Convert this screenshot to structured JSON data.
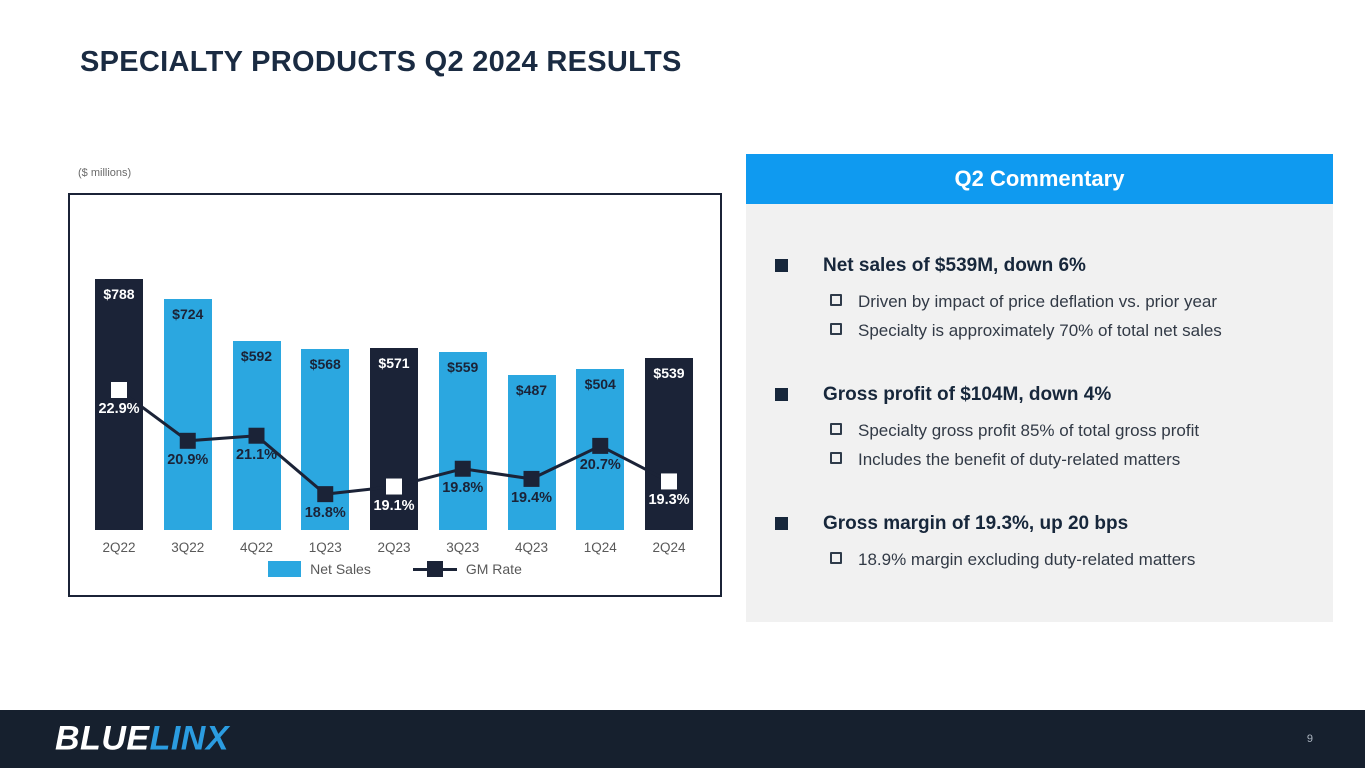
{
  "slide": {
    "title": "SPECIALTY PRODUCTS Q2 2024 RESULTS"
  },
  "chart": {
    "units_label": "($ millions)",
    "legend": [
      {
        "label": "Net Sales",
        "swatch": "bar"
      },
      {
        "label": "GM Rate",
        "swatch": "line"
      }
    ],
    "colors": {
      "bar_blue": "#2ba7e0",
      "bar_dark": "#1b2337",
      "line": "#1b2337",
      "marker_on_dark": "#ffffff"
    }
  },
  "chart_data": {
    "type": "bar+line",
    "title": "",
    "xlabel": "",
    "ylabel": "($ millions)",
    "categories": [
      "2Q22",
      "3Q22",
      "4Q22",
      "1Q23",
      "2Q23",
      "3Q23",
      "4Q23",
      "1Q24",
      "2Q24"
    ],
    "highlighted": [
      true,
      false,
      false,
      false,
      true,
      false,
      false,
      false,
      true
    ],
    "series": [
      {
        "name": "Net Sales",
        "type": "bar",
        "values": [
          788,
          724,
          592,
          568,
          571,
          559,
          487,
          504,
          539
        ],
        "labels": [
          "$788",
          "$724",
          "$592",
          "$568",
          "$571",
          "$559",
          "$487",
          "$504",
          "$539"
        ]
      },
      {
        "name": "GM Rate",
        "type": "line",
        "values": [
          22.9,
          20.9,
          21.1,
          18.8,
          19.1,
          19.8,
          19.4,
          20.7,
          19.3
        ],
        "labels": [
          "22.9%",
          "20.9%",
          "21.1%",
          "18.8%",
          "19.1%",
          "19.8%",
          "19.4%",
          "20.7%",
          "19.3%"
        ]
      }
    ],
    "ylim": [
      0,
      840
    ],
    "grid": false,
    "legend_position": "bottom"
  },
  "commentary": {
    "header": "Q2 Commentary",
    "groups": [
      {
        "heading": "Net sales of $539M, down 6%",
        "subs": [
          "Driven by impact of price deflation vs. prior year",
          "Specialty is approximately 70% of total net sales"
        ]
      },
      {
        "heading": "Gross profit of $104M, down 4%",
        "subs": [
          "Specialty gross profit 85% of total gross profit",
          "Includes the benefit of duty-related matters"
        ]
      },
      {
        "heading": "Gross margin of 19.3%, up 20 bps",
        "subs": [
          "18.9% margin excluding duty-related matters"
        ]
      }
    ]
  },
  "footer": {
    "logo_part1": "BLUE",
    "logo_part2": "LINX",
    "page_number": "9"
  }
}
